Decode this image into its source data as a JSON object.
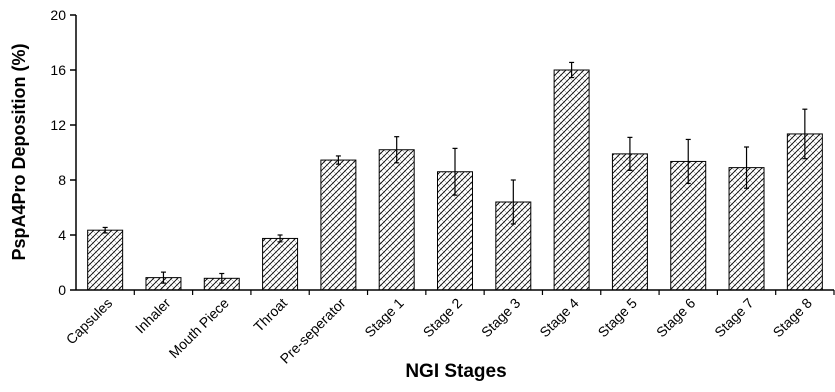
{
  "chart_data": {
    "type": "bar",
    "title": "",
    "xlabel": "NGI Stages",
    "ylabel": "PspA4Pro Deposition (%)",
    "ylim": [
      0,
      20
    ],
    "yticks": [
      "0",
      "4",
      "8",
      "12",
      "16",
      "20"
    ],
    "grid": false,
    "legend": "none",
    "bar_fill": "hatched",
    "bar_color": "#000000",
    "categories": [
      "Capsules",
      "Inhaler",
      "Mouth Piece",
      "Throat",
      "Pre-seperator",
      "Stage 1",
      "Stage 2",
      "Stage 3",
      "Stage 4",
      "Stage 5",
      "Stage 6",
      "Stage 7",
      "Stage 8"
    ],
    "values": [
      4.35,
      0.9,
      0.85,
      3.75,
      9.45,
      10.2,
      8.6,
      6.4,
      16.0,
      9.9,
      9.35,
      8.9,
      11.35
    ],
    "error": [
      0.2,
      0.4,
      0.35,
      0.25,
      0.3,
      0.95,
      1.7,
      1.6,
      0.55,
      1.2,
      1.6,
      1.5,
      1.8
    ]
  }
}
